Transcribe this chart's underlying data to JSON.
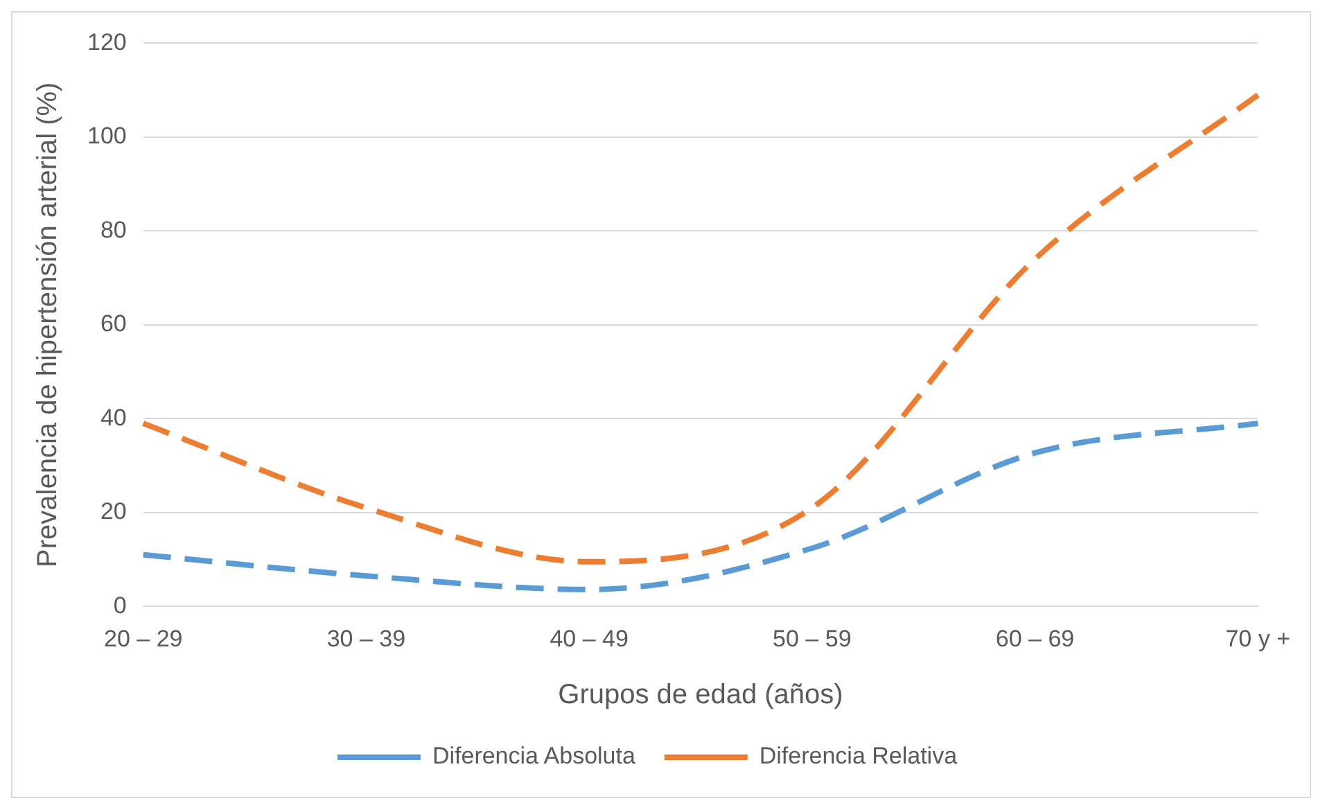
{
  "chart_data": {
    "type": "line",
    "xlabel": "Grupos de edad (años)",
    "ylabel": "Prevalencia de hipertensión arterial (%)",
    "categories": [
      "20 – 29",
      "30 – 39",
      "40 – 49",
      "50 – 59",
      "60 – 69",
      "70 y +"
    ],
    "series": [
      {
        "name": "Diferencia Absoluta",
        "color": "#5b9bd5",
        "values": [
          11,
          6.5,
          3.6,
          12.4,
          32.7,
          39
        ],
        "line_style": "dashed"
      },
      {
        "name": "Diferencia Relativa",
        "color": "#ed7d31",
        "values": [
          39,
          21,
          9.5,
          21,
          74,
          109
        ],
        "line_style": "dashed"
      }
    ],
    "ylim": [
      0,
      120
    ],
    "yticks": [
      0,
      20,
      40,
      60,
      80,
      100,
      120
    ],
    "grid": "y",
    "legend": "bottom",
    "marker": "none"
  }
}
